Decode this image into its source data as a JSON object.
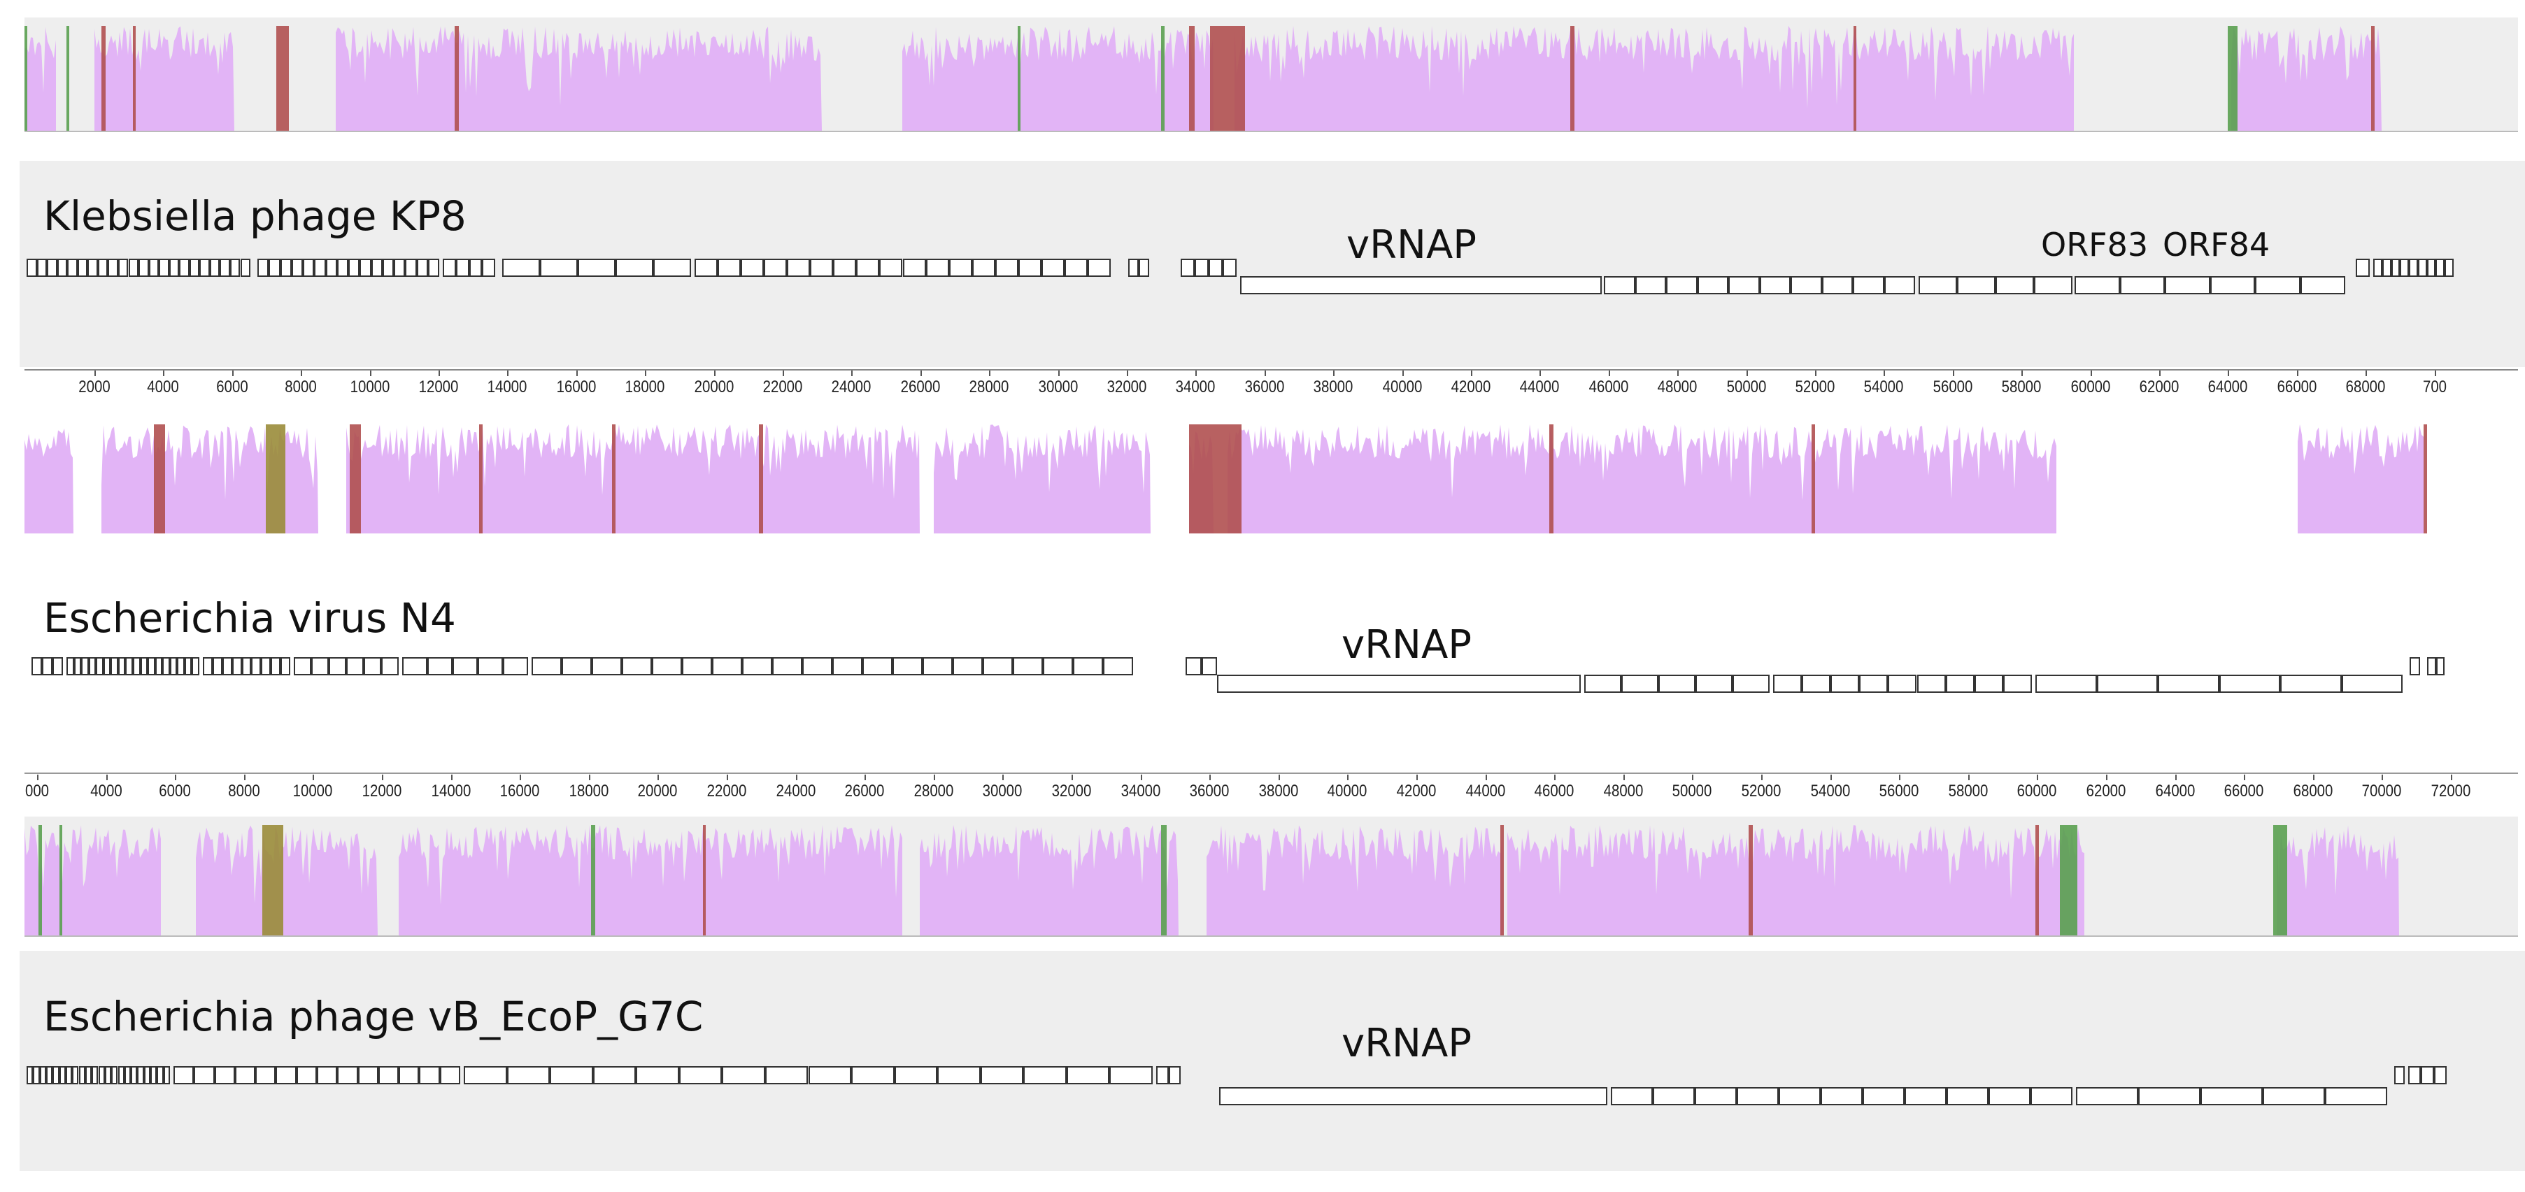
{
  "tracks": [
    {
      "name": "Klebsiella phage KP8",
      "gene_labels": [
        "vRNAP",
        "ORF83",
        "ORF84"
      ],
      "axis_ticks": [
        "2000",
        "4000",
        "6000",
        "8000",
        "10000",
        "12000",
        "14000",
        "16000",
        "18000",
        "20000",
        "22000",
        "24000",
        "26000",
        "28000",
        "30000",
        "32000",
        "34000",
        "36000",
        "38000",
        "40000",
        "42000",
        "44000",
        "46000",
        "48000",
        "50000",
        "52000",
        "54000",
        "56000",
        "58000",
        "60000",
        "62000",
        "64000",
        "66000",
        "68000",
        "700"
      ]
    },
    {
      "name": "Escherichia virus N4",
      "gene_labels": [
        "vRNAP"
      ],
      "axis_ticks": [
        "000",
        "4000",
        "6000",
        "8000",
        "10000",
        "12000",
        "14000",
        "16000",
        "18000",
        "20000",
        "22000",
        "24000",
        "26000",
        "28000",
        "30000",
        "32000",
        "34000",
        "36000",
        "38000",
        "40000",
        "42000",
        "44000",
        "46000",
        "48000",
        "50000",
        "52000",
        "54000",
        "56000",
        "58000",
        "60000",
        "62000",
        "64000",
        "66000",
        "68000",
        "70000",
        "72000"
      ]
    },
    {
      "name": "Escherichia phage vB_EcoP_G7C",
      "gene_labels": [
        "vRNAP"
      ],
      "axis_ticks": []
    }
  ],
  "colors": {
    "similarity": "#e2b4f6",
    "high_identity_red": "#b05050",
    "green": "#5aa050",
    "olive": "#9a8c3a",
    "panel_gray": "#eeeeee"
  }
}
